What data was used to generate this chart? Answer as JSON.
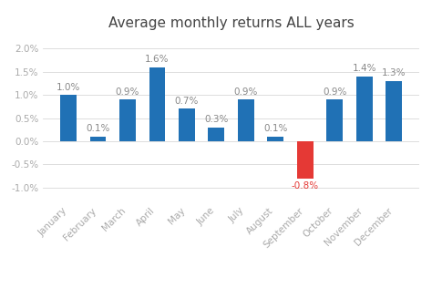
{
  "title": "Average monthly returns ALL years",
  "categories": [
    "January",
    "February",
    "March",
    "April",
    "May",
    "June",
    "July",
    "August",
    "September",
    "October",
    "November",
    "December"
  ],
  "values": [
    1.0,
    0.1,
    0.9,
    1.6,
    0.7,
    0.3,
    0.9,
    0.1,
    -0.8,
    0.9,
    1.4,
    1.3
  ],
  "bar_colors": [
    "#2071B5",
    "#2071B5",
    "#2071B5",
    "#2071B5",
    "#2071B5",
    "#2071B5",
    "#2071B5",
    "#2071B5",
    "#e53935",
    "#2071B5",
    "#2071B5",
    "#2071B5"
  ],
  "value_label_color": "#888888",
  "value_label_color_neg": "#e53935",
  "ylim": [
    -1.3,
    2.3
  ],
  "yticks": [
    -1.0,
    -0.5,
    0.0,
    0.5,
    1.0,
    1.5,
    2.0
  ],
  "background_color": "#ffffff",
  "title_fontsize": 11,
  "tick_label_fontsize": 7.5,
  "value_label_fontsize": 7.5,
  "grid_color": "#d8d8d8",
  "tick_color": "#aaaaaa",
  "title_color": "#444444"
}
